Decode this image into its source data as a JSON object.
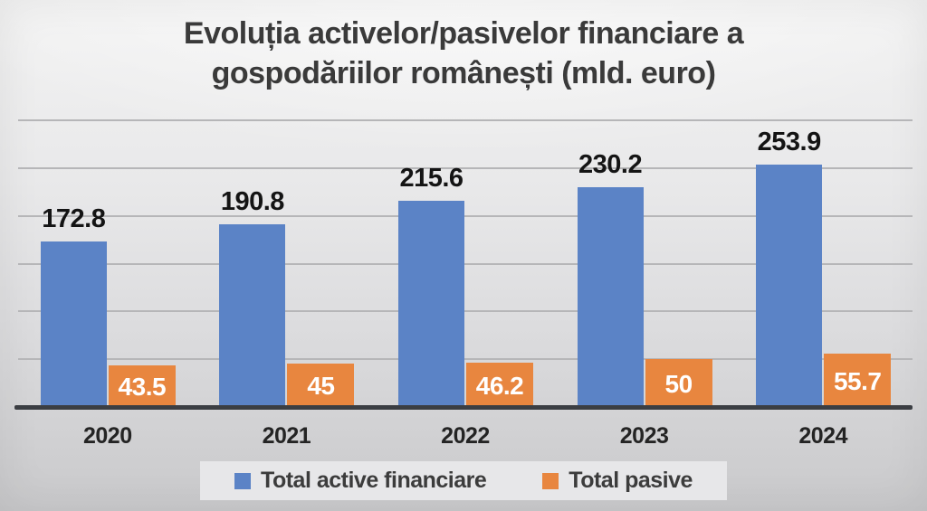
{
  "title": "Evoluția activelor/pasivelor financiare a gospodăriilor românești (mld. euro)",
  "colors": {
    "series_blue": "#5b83c6",
    "series_orange": "#e8863f",
    "title_text": "#3a3a3a",
    "axis_line": "#3b3e43",
    "gridline": "#b6b6b8",
    "legend_background": "#e7e7e9",
    "label_above": "#141414",
    "label_inside": "#ffffff"
  },
  "chart_data": {
    "type": "bar",
    "categories": [
      "2020",
      "2021",
      "2022",
      "2023",
      "2024"
    ],
    "series": [
      {
        "name": "Total active financiare",
        "color": "#5b83c6",
        "values": [
          172.8,
          190.8,
          215.6,
          230.2,
          253.9
        ],
        "labels": [
          "172.8",
          "190.8",
          "215.6",
          "230.2",
          "253.9"
        ],
        "label_position": "above"
      },
      {
        "name": "Total pasive",
        "color": "#e8863f",
        "values": [
          43.5,
          45,
          46.2,
          50,
          55.7
        ],
        "labels": [
          "43.5",
          "45",
          "46.2",
          "50",
          "55.7"
        ],
        "label_position": "inside"
      }
    ],
    "title": "Evoluția activelor/pasivelor financiare a gospodăriilor românești (mld. euro)",
    "xlabel": "",
    "ylabel": "",
    "ylim": [
      0,
      300
    ],
    "gridline_step": 50,
    "grid": true,
    "y_axis_ticks_shown": false,
    "legend_position": "bottom"
  },
  "legend": {
    "items": [
      {
        "label": "Total active financiare",
        "color": "#5b83c6"
      },
      {
        "label": "Total pasive",
        "color": "#e8863f"
      }
    ]
  }
}
